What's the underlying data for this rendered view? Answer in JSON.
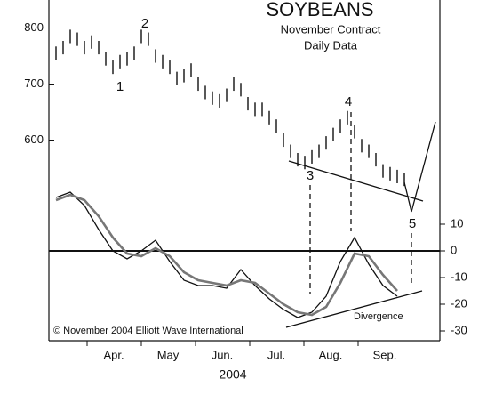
{
  "chart_data": [
    {
      "type": "ohlc",
      "title": "SOYBEANS",
      "subtitle": [
        "November Contract",
        "Daily Data"
      ],
      "months": [
        "Apr.",
        "May",
        "Jun.",
        "Jul.",
        "Aug.",
        "Sep."
      ],
      "xlabel": "2004",
      "xlim": [
        -1,
        54
      ],
      "ylim": [
        450,
        850
      ],
      "yticks": [
        600,
        700,
        800
      ],
      "color": "#111111",
      "high": [
        767,
        777,
        797,
        792,
        777,
        787,
        777,
        757,
        742,
        752,
        757,
        767,
        797,
        792,
        762,
        752,
        742,
        722,
        727,
        737,
        712,
        697,
        687,
        682,
        692,
        712,
        702,
        677,
        667,
        667,
        652,
        637,
        612,
        592,
        577,
        572,
        582,
        592,
        607,
        622,
        637,
        652,
        627,
        602,
        592,
        577,
        557,
        552,
        547,
        542
      ],
      "low": [
        743,
        753,
        773,
        768,
        753,
        763,
        753,
        733,
        718,
        728,
        733,
        743,
        773,
        768,
        738,
        728,
        718,
        698,
        703,
        713,
        688,
        673,
        663,
        658,
        668,
        688,
        678,
        653,
        643,
        643,
        628,
        613,
        588,
        568,
        553,
        548,
        558,
        568,
        583,
        598,
        613,
        628,
        603,
        578,
        568,
        553,
        533,
        528,
        523,
        518
      ],
      "annotations": [
        "1",
        "2",
        "3",
        "4",
        "5"
      ]
    },
    {
      "type": "line",
      "xlim": [
        -1,
        54
      ],
      "y2lim": [
        -33,
        20
      ],
      "y2ticks": [
        10,
        0,
        -10,
        -20,
        -30
      ],
      "x": [
        0,
        2,
        4,
        6,
        8,
        10,
        12,
        14,
        16,
        18,
        20,
        22,
        24,
        26,
        28,
        30,
        32,
        34,
        36,
        38,
        40,
        42,
        44,
        46,
        48
      ],
      "series": [
        {
          "color": "#111111",
          "values": [
            20,
            22,
            17,
            8,
            0,
            -3,
            0,
            4,
            -4,
            -11,
            -13,
            -13,
            -14,
            -7,
            -13,
            -18,
            -22,
            -25,
            -23,
            -17,
            -4,
            5,
            -5,
            -13,
            -17
          ]
        },
        {
          "color": "#777777",
          "values": [
            19,
            21,
            19,
            13,
            5,
            -1,
            -2,
            1,
            -2,
            -8,
            -11,
            -12,
            -13,
            -11,
            -12,
            -16,
            -20,
            -23,
            -24,
            -21,
            -12,
            -1,
            -2,
            -9,
            -15
          ]
        }
      ],
      "annotations": [
        "Divergence",
        "© November 2004 Elliott Wave International"
      ]
    }
  ]
}
